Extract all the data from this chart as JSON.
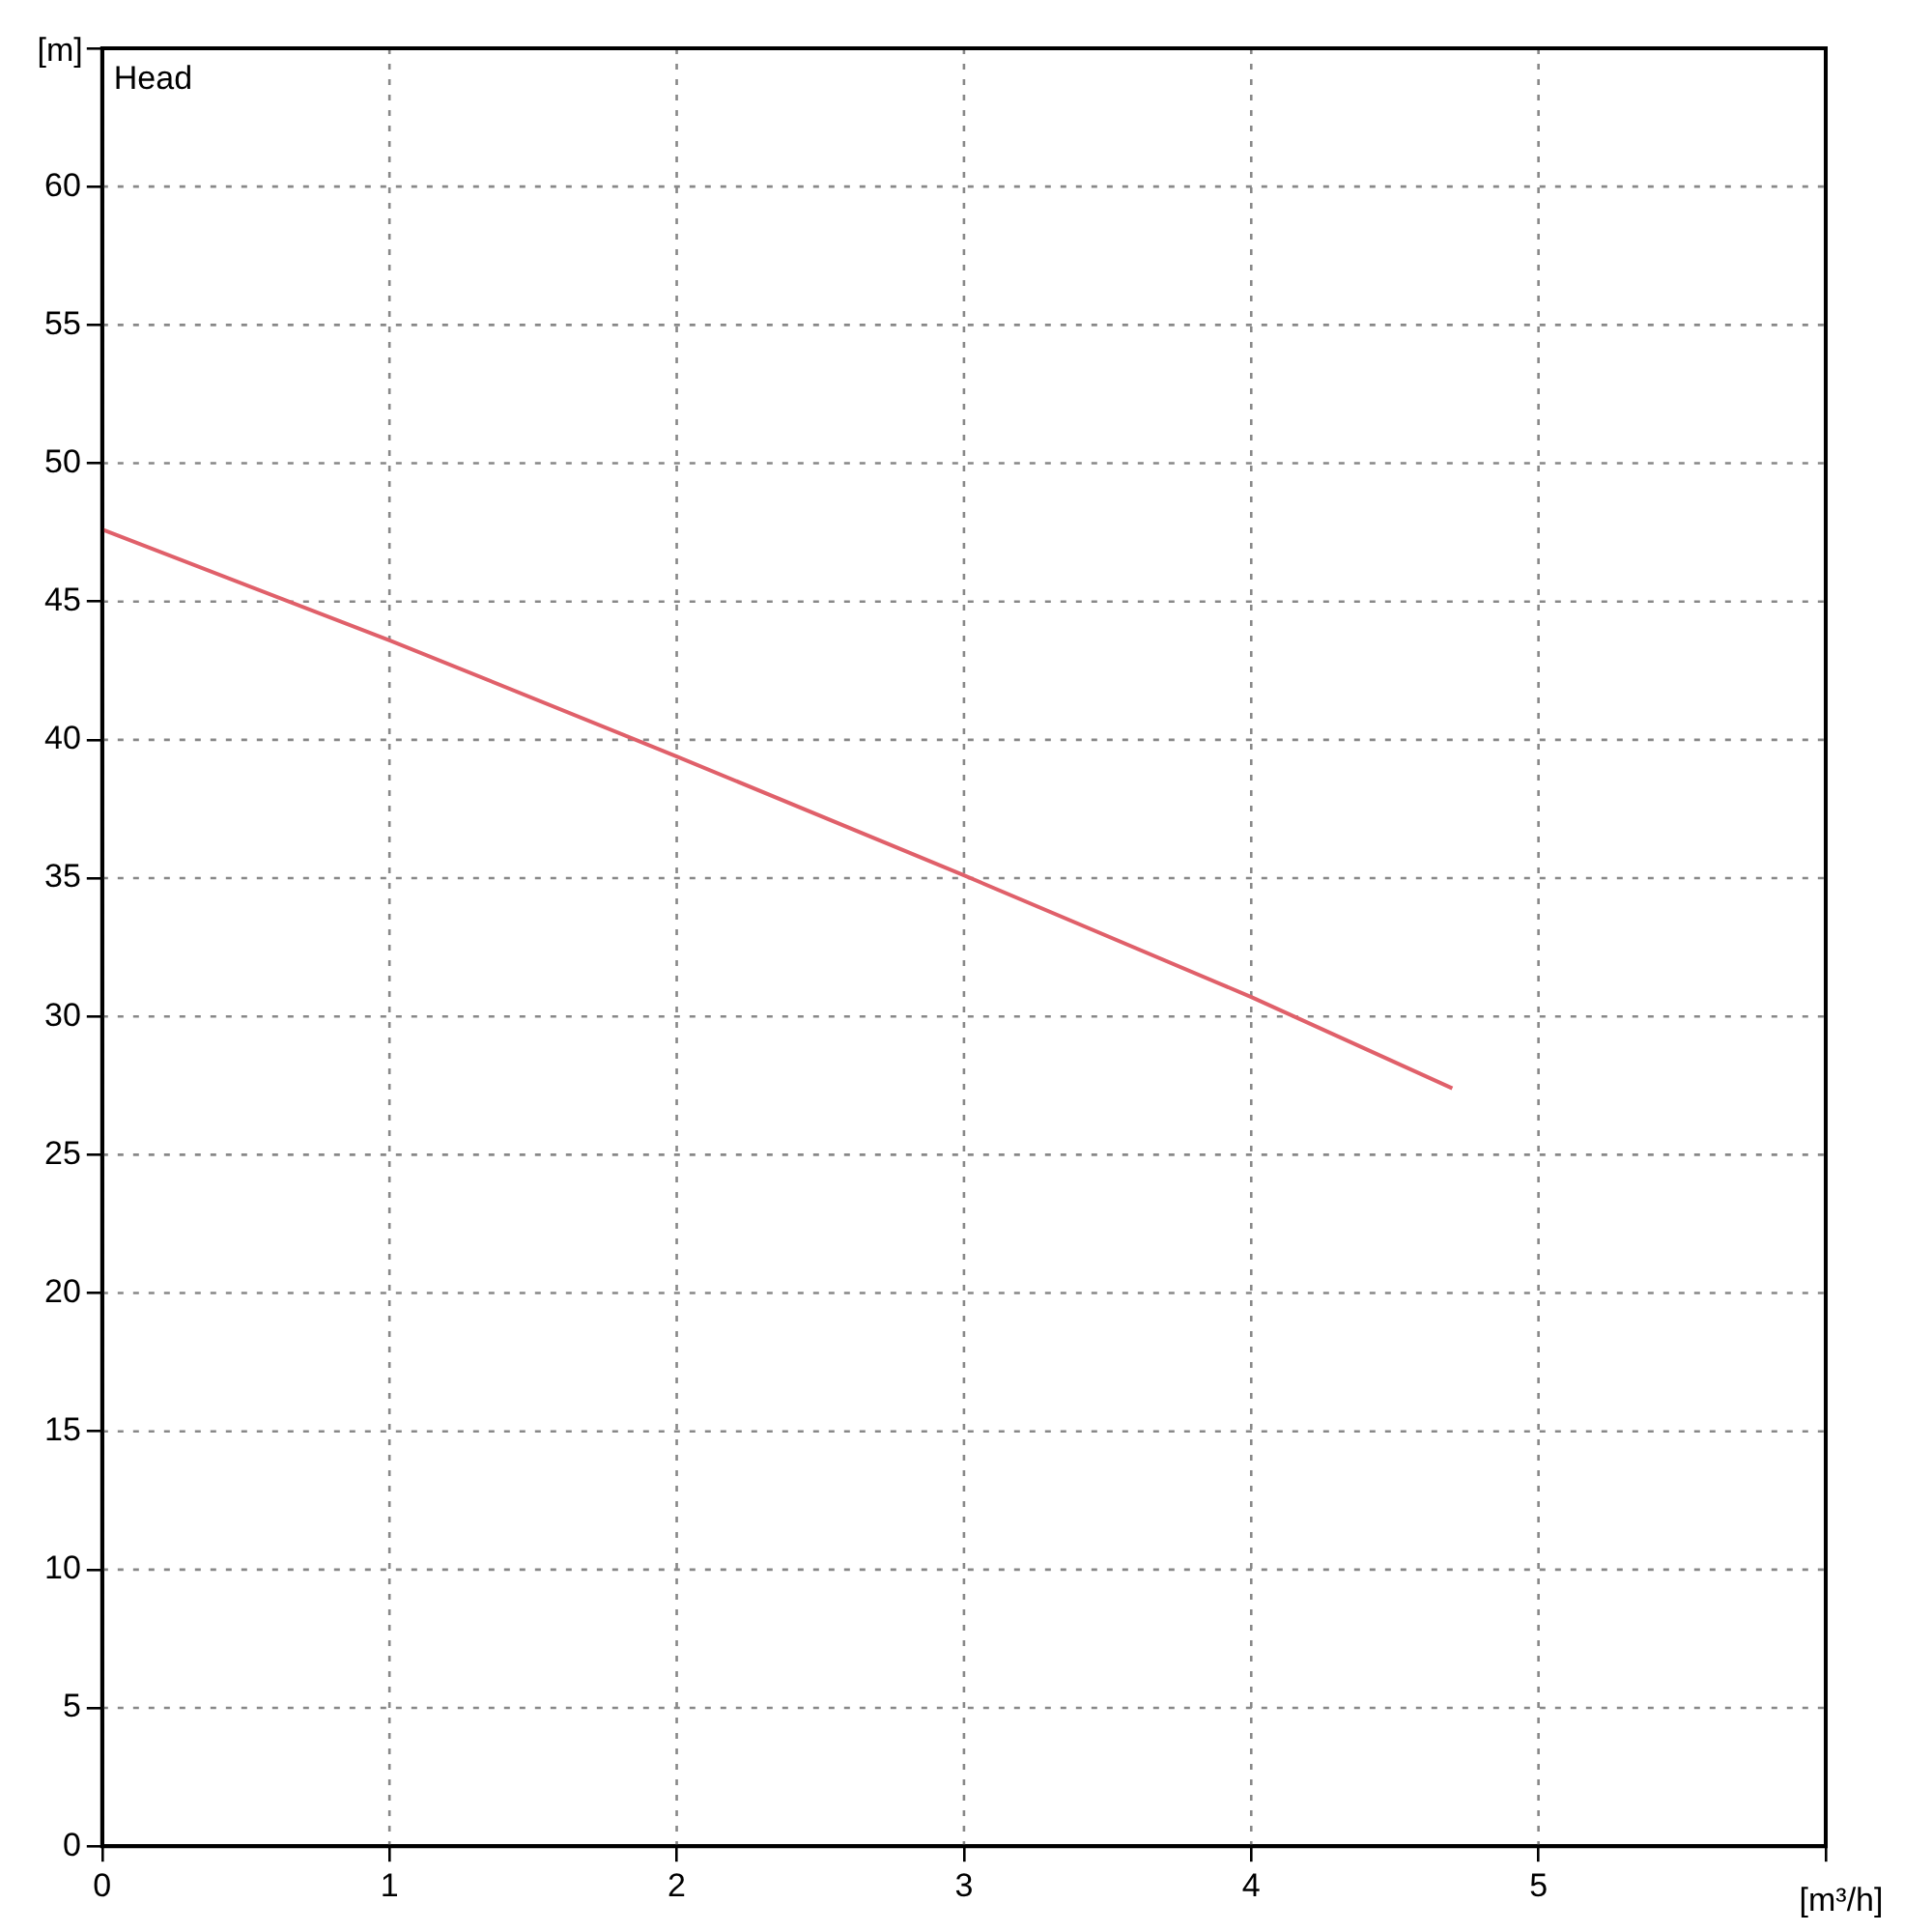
{
  "chart_data": {
    "type": "line",
    "xlabel": "[m³/h]",
    "ylabel": "[m]",
    "annotations": [
      "Head"
    ],
    "series": [
      {
        "color": "#e0606a",
        "x": [
          0,
          1,
          2,
          3,
          4,
          4.7
        ],
        "values": [
          47.6,
          43.6,
          39.4,
          35.1,
          30.7,
          27.4
        ]
      }
    ],
    "xlim": [
      0,
      6
    ],
    "xticks": [
      0,
      1,
      2,
      3,
      4,
      5,
      {
        "value": 6,
        "label": null
      }
    ],
    "ylim": [
      0,
      65
    ],
    "yticks": [
      0,
      5,
      10,
      15,
      20,
      25,
      30,
      35,
      40,
      45,
      50,
      55,
      60,
      {
        "value": 65,
        "label": null
      }
    ],
    "grid": true,
    "legend": false,
    "marker": "none",
    "line_style": "solid"
  }
}
